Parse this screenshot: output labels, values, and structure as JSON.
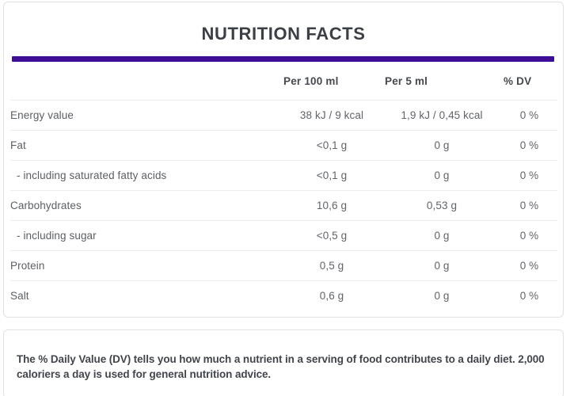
{
  "card": {
    "title": "NUTRITION FACTS"
  },
  "table": {
    "columns": [
      "",
      "Per 100 ml",
      "Per 5 ml",
      "% DV"
    ],
    "rows": [
      {
        "label": "Energy value",
        "per100": "38 kJ / 9 kcal",
        "per5": "1,9 kJ / 0,45 kcal",
        "dv": "0 %"
      },
      {
        "label": "Fat",
        "per100": "<0,1 g",
        "per5": "0 g",
        "dv": "0 %"
      },
      {
        "label": "- including saturated fatty acids",
        "per100": "<0,1 g",
        "per5": "0 g",
        "dv": "0 %"
      },
      {
        "label": "Carbohydrates",
        "per100": "10,6 g",
        "per5": "0,53 g",
        "dv": "0 %"
      },
      {
        "label": "- including sugar",
        "per100": "<0,5 g",
        "per5": "0 g",
        "dv": "0 %"
      },
      {
        "label": "Protein",
        "per100": "0,5 g",
        "per5": "0 g",
        "dv": "0 %"
      },
      {
        "label": "Salt",
        "per100": "0,6 g",
        "per5": "0 g",
        "dv": "0 %"
      }
    ]
  },
  "footer": {
    "note": "The % Daily Value (DV) tells you how much a nutrient in a serving of food contributes to a daily diet. 2,000 caloriers a day is used for general nutrition advice."
  },
  "colors": {
    "accent_bar": "#3e0d96",
    "card_border": "#e4e1dc",
    "row_divider": "#ededed"
  }
}
